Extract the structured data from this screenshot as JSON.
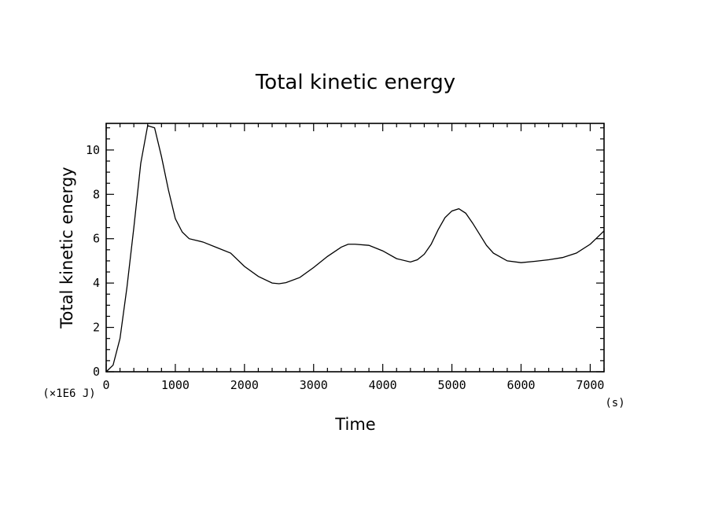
{
  "chart_data": {
    "type": "line",
    "title": "Total kinetic energy",
    "xlabel": "Time",
    "ylabel": "Total kinetic energy",
    "x_unit": "(s)",
    "y_unit": "(×1E6 J)",
    "xlim": [
      0,
      7200
    ],
    "ylim": [
      0,
      11.2
    ],
    "xticks": [
      0,
      1000,
      2000,
      3000,
      4000,
      5000,
      6000,
      7000
    ],
    "xtick_labels": [
      "0",
      "1000",
      "2000",
      "3000",
      "4000",
      "5000",
      "6000",
      "7000"
    ],
    "yticks": [
      0,
      2,
      4,
      6,
      8,
      10
    ],
    "ytick_labels": [
      "0",
      "2",
      "4",
      "6",
      "8",
      "10"
    ],
    "x_minor_step": 200,
    "y_minor_step": 0.5,
    "grid": false,
    "legend": "none",
    "series": [
      {
        "x": [
          0,
          100,
          200,
          300,
          400,
          500,
          600,
          700,
          800,
          900,
          1000,
          1100,
          1200,
          1400,
          1600,
          1800,
          2000,
          2200,
          2400,
          2500,
          2600,
          2800,
          3000,
          3200,
          3400,
          3500,
          3600,
          3800,
          4000,
          4200,
          4400,
          4500,
          4600,
          4700,
          4800,
          4900,
          5000,
          5100,
          5200,
          5300,
          5400,
          5500,
          5600,
          5800,
          6000,
          6200,
          6400,
          6600,
          6800,
          7000,
          7100,
          7200
        ],
        "y": [
          0,
          0.3,
          1.5,
          3.8,
          6.5,
          9.4,
          11.1,
          11.0,
          9.7,
          8.2,
          6.9,
          6.3,
          6.0,
          5.85,
          5.6,
          5.35,
          4.75,
          4.3,
          4.0,
          3.97,
          4.02,
          4.25,
          4.7,
          5.2,
          5.62,
          5.75,
          5.75,
          5.7,
          5.45,
          5.1,
          4.95,
          5.05,
          5.3,
          5.75,
          6.4,
          6.95,
          7.25,
          7.35,
          7.15,
          6.7,
          6.2,
          5.7,
          5.35,
          5.0,
          4.92,
          4.98,
          5.05,
          5.15,
          5.35,
          5.75,
          6.05,
          6.35
        ]
      }
    ]
  }
}
